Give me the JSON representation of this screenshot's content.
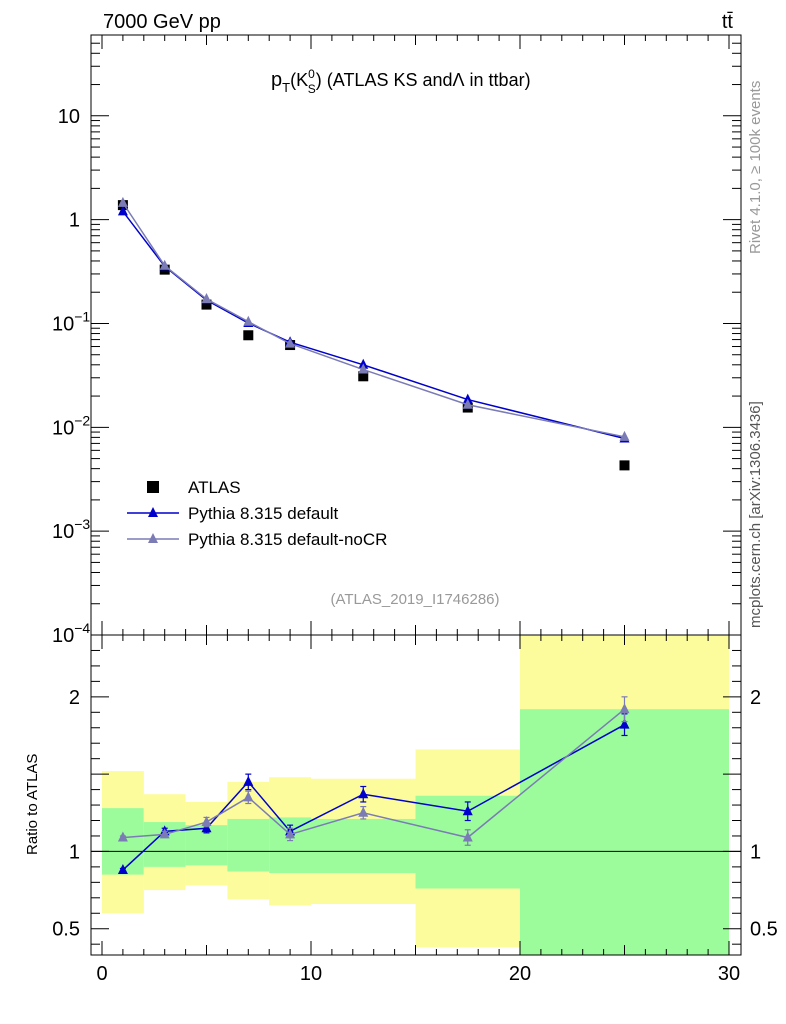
{
  "header": {
    "energy_label": "7000 GeV pp",
    "process_label": "tt̄"
  },
  "side_labels": {
    "rivet": "Rivet 4.1.0, ≥ 100k events",
    "mcplots": "mcplots.cern.ch [arXiv:1306.3436]"
  },
  "chart_data": {
    "type": "scatter",
    "title": "p_T(K_S^0) (ATLAS KS and Λ in ttbar)",
    "title_parts": {
      "p": "p",
      "T": "T",
      "open": "(K",
      "zero": "0",
      "S": "S",
      "rest": ") (ATLAS KS and",
      "lambda": "Λ",
      "tail": "in ttbar)"
    },
    "analysis_label": "(ATLAS_2019_I1746286)",
    "xlim": [
      0,
      30
    ],
    "x_ticks": [
      "0",
      "10",
      "20",
      "30"
    ],
    "main": {
      "yscale": "log",
      "ylim": [
        0.0001,
        60
      ],
      "y_ticks": [
        {
          "value": 10,
          "base": "10",
          "exp": ""
        },
        {
          "value": 1,
          "base": "1",
          "exp": ""
        },
        {
          "value": 0.1,
          "base": "10",
          "exp": "−1"
        },
        {
          "value": 0.01,
          "base": "10",
          "exp": "−2"
        },
        {
          "value": 0.001,
          "base": "10",
          "exp": "−3"
        },
        {
          "value": 0.0001,
          "base": "10",
          "exp": "−4"
        }
      ]
    },
    "ratio": {
      "ylabel": "Ratio to ATLAS",
      "ylim": [
        0.33,
        2.4
      ],
      "y_ticks": [
        {
          "value": 0.5,
          "label": "0.5"
        },
        {
          "value": 1,
          "label": "1"
        },
        {
          "value": 2,
          "label": "2"
        }
      ],
      "bands": [
        {
          "x0": 0,
          "x1": 2,
          "inner": [
            0.85,
            1.28
          ],
          "outer": [
            0.6,
            1.52
          ]
        },
        {
          "x0": 2,
          "x1": 4,
          "inner": [
            0.9,
            1.19
          ],
          "outer": [
            0.75,
            1.37
          ]
        },
        {
          "x0": 4,
          "x1": 6,
          "inner": [
            0.91,
            1.17
          ],
          "outer": [
            0.78,
            1.32
          ]
        },
        {
          "x0": 6,
          "x1": 8,
          "inner": [
            0.87,
            1.21
          ],
          "outer": [
            0.69,
            1.45
          ]
        },
        {
          "x0": 8,
          "x1": 10,
          "inner": [
            0.86,
            1.22
          ],
          "outer": [
            0.65,
            1.48
          ]
        },
        {
          "x0": 10,
          "x1": 15,
          "inner": [
            0.86,
            1.21
          ],
          "outer": [
            0.66,
            1.47
          ]
        },
        {
          "x0": 15,
          "x1": 20,
          "inner": [
            0.76,
            1.36
          ],
          "outer": [
            0.38,
            1.66
          ]
        },
        {
          "x0": 20,
          "x1": 30,
          "inner": [
            0.33,
            1.92
          ],
          "outer": [
            0.33,
            2.4
          ]
        }
      ]
    },
    "x": [
      1,
      3,
      5,
      7,
      9,
      12.5,
      17.5,
      25
    ],
    "series": [
      {
        "name": "ATLAS",
        "marker": "square",
        "color": "#000000",
        "values": [
          1.38,
          0.33,
          0.152,
          0.077,
          0.062,
          0.031,
          0.0155,
          0.0043
        ],
        "ratio": []
      },
      {
        "name": "Pythia 8.315 default",
        "marker": "triangle",
        "color": "#0000cc",
        "values": [
          1.2,
          0.355,
          0.168,
          0.101,
          0.066,
          0.04,
          0.0185,
          0.0078
        ],
        "ratio": [
          0.88,
          1.13,
          1.15,
          1.45,
          1.13,
          1.37,
          1.26,
          1.82
        ],
        "ratio_err": [
          0.01,
          0.02,
          0.03,
          0.05,
          0.04,
          0.05,
          0.06,
          0.07
        ]
      },
      {
        "name": "Pythia 8.315 default-noCR",
        "marker": "triangle",
        "color": "#7b7bb5",
        "values": [
          1.45,
          0.36,
          0.172,
          0.104,
          0.064,
          0.036,
          0.0165,
          0.0081
        ],
        "ratio": [
          1.09,
          1.11,
          1.19,
          1.35,
          1.11,
          1.25,
          1.09,
          1.92
        ],
        "ratio_err": [
          0.01,
          0.02,
          0.03,
          0.04,
          0.04,
          0.04,
          0.05,
          0.08
        ]
      }
    ],
    "legend": {
      "position": "lower-left",
      "entries": [
        "ATLAS",
        "Pythia 8.315 default",
        "Pythia 8.315 default-noCR"
      ]
    },
    "colors": {
      "band_inner": "#9cfc9c",
      "band_outer": "#fcfc9c"
    }
  }
}
